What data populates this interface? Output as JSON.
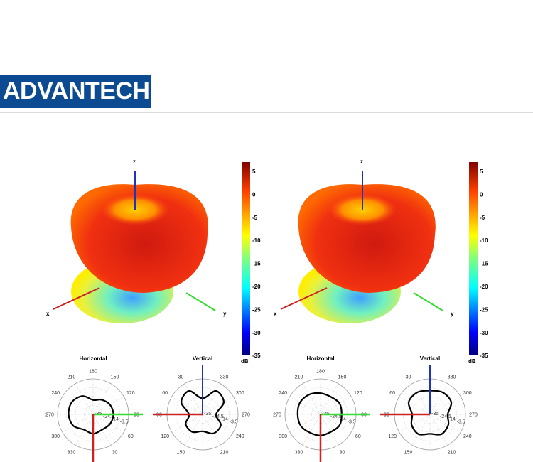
{
  "logo": {
    "text": "ADVANTECH",
    "color": "#0c4b91"
  },
  "colorbar": {
    "ticks": [
      "5",
      "0",
      "-5",
      "-10",
      "-15",
      "-20",
      "-25",
      "-30",
      "-35"
    ],
    "unit": "dB",
    "colormap": "jet",
    "range_db": [
      -35,
      7
    ]
  },
  "axes_labels": {
    "x": "x",
    "y": "y",
    "z": "z"
  },
  "axis_colors": {
    "x": "#cc2222",
    "y": "#33dd33",
    "z": "#2233bb"
  },
  "polar": {
    "horizontal_title": "Horizontal",
    "vertical_title": "Vertical",
    "horizontal_angle_labels": [
      "180",
      "150",
      "120",
      "90",
      "60",
      "30",
      "330",
      "300",
      "270",
      "240",
      "210"
    ],
    "vertical_angle_labels": [
      "330",
      "300",
      "270",
      "240",
      "210",
      "150",
      "120",
      "90",
      "60",
      "30"
    ],
    "radial_labels": [
      "-35",
      "-24.5",
      "-14",
      "-3.5"
    ]
  },
  "chart_data": [
    {
      "type": "polar",
      "title": "Horizontal",
      "angles_deg": [
        0,
        30,
        60,
        90,
        120,
        150,
        180,
        210,
        240,
        270,
        300,
        330
      ],
      "gain_db": [
        -12,
        -14,
        -12,
        -11,
        -12,
        -15,
        -18,
        -10,
        -6,
        -6,
        -8,
        -14
      ]
    },
    {
      "type": "polar",
      "title": "Vertical",
      "angles_deg": [
        0,
        30,
        60,
        90,
        120,
        150,
        180,
        210,
        240,
        270,
        300,
        330
      ],
      "gain_db": [
        -16,
        -3,
        -6,
        -19,
        -12,
        -11,
        -15,
        -9,
        -10,
        -19,
        -6,
        -3
      ]
    },
    {
      "type": "polar",
      "title": "Horizontal",
      "angles_deg": [
        0,
        30,
        60,
        90,
        120,
        150,
        180,
        210,
        240,
        270,
        300,
        330
      ],
      "gain_db": [
        -10,
        -11,
        -9,
        -10,
        -9,
        -11,
        -10,
        -8,
        -7,
        -8,
        -8,
        -10
      ]
    },
    {
      "type": "polar",
      "title": "Vertical",
      "angles_deg": [
        0,
        30,
        60,
        90,
        120,
        150,
        180,
        210,
        240,
        270,
        300,
        330
      ],
      "gain_db": [
        -7,
        -5,
        -6,
        -14,
        -10,
        -8,
        -12,
        -8,
        -10,
        -14,
        -6,
        -5
      ]
    }
  ]
}
